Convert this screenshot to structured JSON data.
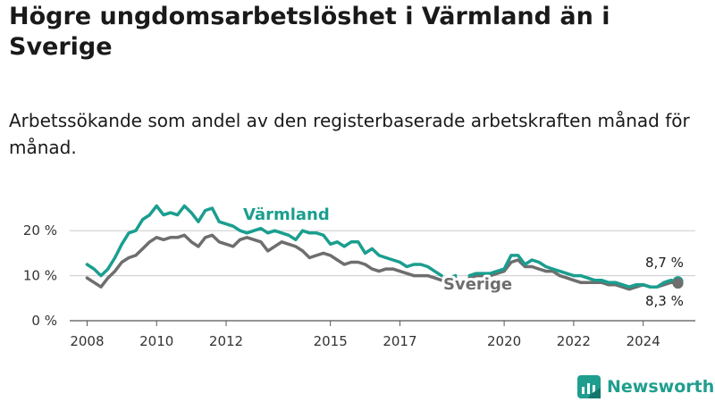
{
  "chart_data": {
    "type": "line",
    "title": "Högre ungdomsarbetslöshet i Värmland än i Sverige",
    "subtitle": "Arbetssökande som andel av den registerbaserade arbetskraften månad för månad.",
    "xlabel": "",
    "ylabel": "",
    "ylim": [
      0,
      26
    ],
    "yticks": [
      0,
      10,
      20
    ],
    "ytick_labels": [
      "0 %",
      "10 %",
      "20 %"
    ],
    "xlim": [
      2007.5,
      2025.5
    ],
    "xticks": [
      2008,
      2010,
      2012,
      2015,
      2017,
      2020,
      2022,
      2024
    ],
    "xtick_labels": [
      "2008",
      "2010",
      "2012",
      "2015",
      "2017",
      "2020",
      "2022",
      "2024"
    ],
    "grid": true,
    "legend": "direct labels on lines",
    "series": [
      {
        "name": "Värmland",
        "color": "#1a9e8f",
        "end_label": "8,7 %",
        "x": [
          2008.0,
          2008.2,
          2008.4,
          2008.6,
          2008.8,
          2009.0,
          2009.2,
          2009.4,
          2009.6,
          2009.8,
          2010.0,
          2010.2,
          2010.4,
          2010.6,
          2010.8,
          2011.0,
          2011.2,
          2011.4,
          2011.6,
          2011.8,
          2012.0,
          2012.2,
          2012.4,
          2012.6,
          2012.8,
          2013.0,
          2013.2,
          2013.4,
          2013.6,
          2013.8,
          2014.0,
          2014.2,
          2014.4,
          2014.6,
          2014.8,
          2015.0,
          2015.2,
          2015.4,
          2015.6,
          2015.8,
          2016.0,
          2016.2,
          2016.4,
          2016.6,
          2016.8,
          2017.0,
          2017.2,
          2017.4,
          2017.6,
          2017.8,
          2018.0,
          2018.2,
          null,
          2018.4,
          2018.6,
          null,
          2019.0,
          2019.2,
          2019.4,
          2019.6,
          2019.8,
          2020.0,
          2020.2,
          2020.4,
          2020.6,
          2020.8,
          2021.0,
          2021.2,
          2021.4,
          2021.6,
          2021.8,
          2022.0,
          2022.2,
          2022.4,
          2022.6,
          2022.8,
          2023.0,
          2023.2,
          2023.4,
          2023.6,
          2023.8,
          2024.0,
          2024.2,
          2024.4,
          2024.6,
          2024.8,
          2025.0
        ],
        "values": [
          12.5,
          11.5,
          10.0,
          11.5,
          14.0,
          17.0,
          19.5,
          20.0,
          22.5,
          23.5,
          25.5,
          23.5,
          24.0,
          23.5,
          25.5,
          24.0,
          22.0,
          24.5,
          25.0,
          22.0,
          21.5,
          21.0,
          20.0,
          19.5,
          20.0,
          20.5,
          19.5,
          20.0,
          19.5,
          19.0,
          18.0,
          20.0,
          19.5,
          19.5,
          19.0,
          17.0,
          17.5,
          16.5,
          17.5,
          17.5,
          15.0,
          16.0,
          14.5,
          14.0,
          13.5,
          13.0,
          12.0,
          12.5,
          12.5,
          12.0,
          11.0,
          10.0,
          null,
          9.5,
          10.0,
          null,
          10.0,
          10.5,
          10.5,
          10.5,
          11.0,
          11.5,
          14.5,
          14.5,
          12.5,
          13.5,
          13.0,
          12.0,
          11.5,
          11.0,
          10.5,
          10.0,
          10.0,
          9.5,
          9.0,
          9.0,
          8.5,
          8.5,
          8.0,
          7.5,
          8.0,
          8.0,
          7.5,
          7.5,
          8.5,
          9.0,
          8.7
        ]
      },
      {
        "name": "Sverige",
        "color": "#6e6e6e",
        "end_label": "8,3 %",
        "x": [
          2008.0,
          2008.2,
          2008.4,
          2008.6,
          2008.8,
          2009.0,
          2009.2,
          2009.4,
          2009.6,
          2009.8,
          2010.0,
          2010.2,
          2010.4,
          2010.6,
          2010.8,
          2011.0,
          2011.2,
          2011.4,
          2011.6,
          2011.8,
          2012.0,
          2012.2,
          2012.4,
          2012.6,
          2012.8,
          2013.0,
          2013.2,
          2013.4,
          2013.6,
          2013.8,
          2014.0,
          2014.2,
          2014.4,
          2014.6,
          2014.8,
          2015.0,
          2015.2,
          2015.4,
          2015.6,
          2015.8,
          2016.0,
          2016.2,
          2016.4,
          2016.6,
          2016.8,
          2017.0,
          2017.2,
          2017.4,
          2017.6,
          2017.8,
          2018.0,
          2018.2,
          null,
          2018.4,
          2018.6,
          null,
          2019.0,
          2019.2,
          2019.4,
          2019.6,
          2019.8,
          2020.0,
          2020.2,
          2020.4,
          2020.6,
          2020.8,
          2021.0,
          2021.2,
          2021.4,
          2021.6,
          2021.8,
          2022.0,
          2022.2,
          2022.4,
          2022.6,
          2022.8,
          2023.0,
          2023.2,
          2023.4,
          2023.6,
          2023.8,
          2024.0,
          2024.2,
          2024.4,
          2024.6,
          2024.8,
          2025.0
        ],
        "values": [
          9.5,
          8.5,
          7.5,
          9.5,
          11.0,
          13.0,
          14.0,
          14.5,
          16.0,
          17.5,
          18.5,
          18.0,
          18.5,
          18.5,
          19.0,
          17.5,
          16.5,
          18.5,
          19.0,
          17.5,
          17.0,
          16.5,
          18.0,
          18.5,
          18.0,
          17.5,
          15.5,
          16.5,
          17.5,
          17.0,
          16.5,
          15.5,
          14.0,
          14.5,
          15.0,
          14.5,
          13.5,
          12.5,
          13.0,
          13.0,
          12.5,
          11.5,
          11.0,
          11.5,
          11.5,
          11.0,
          10.5,
          10.0,
          10.0,
          10.0,
          9.5,
          9.0,
          null,
          9.0,
          9.5,
          null,
          9.5,
          10.0,
          10.0,
          10.0,
          10.5,
          11.0,
          13.0,
          13.5,
          12.0,
          12.0,
          11.5,
          11.0,
          11.0,
          10.0,
          9.5,
          9.0,
          8.5,
          8.5,
          8.5,
          8.5,
          8.0,
          8.0,
          7.5,
          7.0,
          7.5,
          8.0,
          7.5,
          7.5,
          8.0,
          8.5,
          8.3
        ]
      }
    ]
  },
  "brand": {
    "name": "Newsworthy",
    "color": "#1f9e8f",
    "icon": "chart-logo-icon"
  }
}
